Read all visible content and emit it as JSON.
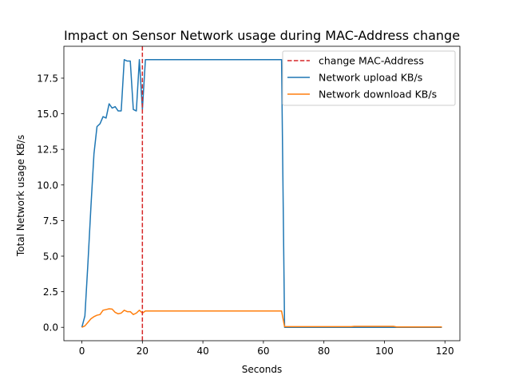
{
  "chart_data": {
    "type": "line",
    "title": "Impact on Sensor Network usage during MAC-Address change",
    "xlabel": "Seconds",
    "ylabel": "Total Network usage KB/s",
    "xlim": [
      -5.95,
      124.95
    ],
    "ylim": [
      -0.94,
      19.74
    ],
    "xticks": [
      0,
      20,
      40,
      60,
      80,
      100,
      120
    ],
    "yticks": [
      0.0,
      2.5,
      5.0,
      7.5,
      10.0,
      12.5,
      15.0,
      17.5
    ],
    "ytick_labels": [
      "0.0",
      "2.5",
      "5.0",
      "7.5",
      "10.0",
      "12.5",
      "15.0",
      "17.5"
    ],
    "grid": false,
    "legend_position": "top-right",
    "vline": {
      "name": "change MAC-Address",
      "x": 20,
      "color": "#d62728",
      "style": "dashed"
    },
    "series": [
      {
        "name": "Network upload KB/s",
        "color": "#1f77b4",
        "x": [
          0,
          1,
          2,
          3,
          4,
          5,
          6,
          7,
          8,
          9,
          10,
          11,
          12,
          13,
          14,
          15,
          16,
          17,
          18,
          19,
          20,
          21,
          22,
          30,
          40,
          50,
          60,
          65,
          66,
          67,
          68,
          80,
          90,
          100,
          110,
          119
        ],
        "y": [
          0.0,
          0.8,
          4.5,
          8.5,
          12.2,
          14.1,
          14.3,
          14.8,
          14.7,
          15.7,
          15.4,
          15.5,
          15.2,
          15.2,
          18.8,
          18.7,
          18.7,
          15.3,
          15.2,
          18.8,
          15.3,
          18.8,
          18.8,
          18.8,
          18.8,
          18.8,
          18.8,
          18.8,
          18.8,
          0.0,
          0.0,
          0.0,
          0.0,
          0.0,
          0.0,
          0.0
        ]
      },
      {
        "name": "Network download KB/s",
        "color": "#ff7f0e",
        "x": [
          0,
          1,
          2,
          3,
          4,
          5,
          6,
          7,
          8,
          9,
          10,
          11,
          12,
          13,
          14,
          15,
          16,
          17,
          18,
          19,
          20,
          21,
          22,
          30,
          40,
          50,
          60,
          65,
          66,
          67,
          68,
          80,
          89,
          90,
          100,
          103,
          104,
          110,
          119
        ],
        "y": [
          0.0,
          0.1,
          0.35,
          0.6,
          0.75,
          0.85,
          0.9,
          1.2,
          1.25,
          1.3,
          1.28,
          1.05,
          0.95,
          1.0,
          1.2,
          1.1,
          1.1,
          0.9,
          1.0,
          1.2,
          1.0,
          1.15,
          1.15,
          1.15,
          1.15,
          1.15,
          1.15,
          1.15,
          1.15,
          0.05,
          0.05,
          0.05,
          0.05,
          0.07,
          0.07,
          0.07,
          0.03,
          0.03,
          0.03
        ]
      }
    ]
  }
}
